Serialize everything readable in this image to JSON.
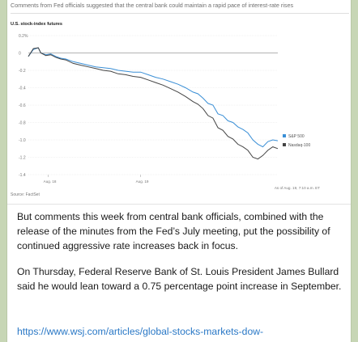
{
  "message": {
    "chart_heading": "Comments from Fed officials suggested that the central bank could maintain a rapid pace of interest-rate rises",
    "source": "Source: FactSet",
    "timestamp": "As of Aug. 19, 7:10 a.m. ET",
    "paragraph1": "But comments this week from central bank officials, combined with the release of the minutes from the Fed’s July meeting, put the possibility of continued aggressive rate increases back in focus.",
    "paragraph2": "On Thursday, Federal Reserve Bank of St. Louis President James Bullard said he would lean toward a 0.75 percentage point increase in September.",
    "link": "https://www.wsj.com/articles/global-stocks-markets-dow-"
  },
  "colors": {
    "sp500": "#3a8fd6",
    "nasdaq": "#444444",
    "link": "#2a78c6",
    "background": "#c7d6b5"
  },
  "chart_data": {
    "type": "line",
    "title": "U.S. stock-index futures",
    "ylim": [
      -1.4,
      0.2
    ],
    "yticks": [
      "0.2%",
      "0",
      "-0.2",
      "-0.4",
      "-0.6",
      "-0.8",
      "-1.0",
      "-1.2",
      "-1.4"
    ],
    "ytick_values": [
      0.2,
      0,
      -0.2,
      -0.4,
      -0.6,
      -0.8,
      -1.0,
      -1.2,
      -1.4
    ],
    "xticks": [
      "Aug. 18",
      "Aug. 19"
    ],
    "xtick_positions": [
      0.08,
      0.45
    ],
    "legend_position": "right",
    "series": [
      {
        "name": "S&P 500",
        "color": "#3a8fd6",
        "x": [
          0,
          0.02,
          0.04,
          0.05,
          0.07,
          0.09,
          0.11,
          0.13,
          0.15,
          0.18,
          0.21,
          0.24,
          0.27,
          0.3,
          0.33,
          0.36,
          0.39,
          0.42,
          0.45,
          0.48,
          0.51,
          0.54,
          0.57,
          0.6,
          0.63,
          0.66,
          0.68,
          0.7,
          0.72,
          0.74,
          0.76,
          0.78,
          0.8,
          0.82,
          0.84,
          0.86,
          0.88,
          0.9,
          0.92,
          0.94,
          0.96,
          0.98,
          1.0
        ],
        "y": [
          -0.04,
          0.04,
          0.06,
          0.0,
          -0.02,
          -0.01,
          -0.04,
          -0.06,
          -0.07,
          -0.1,
          -0.12,
          -0.14,
          -0.16,
          -0.17,
          -0.18,
          -0.2,
          -0.21,
          -0.22,
          -0.22,
          -0.25,
          -0.28,
          -0.3,
          -0.33,
          -0.36,
          -0.4,
          -0.45,
          -0.47,
          -0.52,
          -0.58,
          -0.6,
          -0.7,
          -0.72,
          -0.78,
          -0.8,
          -0.85,
          -0.88,
          -0.92,
          -1.0,
          -1.05,
          -1.08,
          -1.02,
          -1.0,
          -1.01
        ]
      },
      {
        "name": "Nasdaq-100",
        "color": "#444444",
        "x": [
          0,
          0.02,
          0.04,
          0.05,
          0.07,
          0.09,
          0.11,
          0.13,
          0.15,
          0.18,
          0.21,
          0.24,
          0.27,
          0.3,
          0.33,
          0.36,
          0.39,
          0.42,
          0.45,
          0.48,
          0.51,
          0.54,
          0.57,
          0.6,
          0.63,
          0.66,
          0.68,
          0.7,
          0.72,
          0.74,
          0.76,
          0.78,
          0.8,
          0.82,
          0.84,
          0.86,
          0.88,
          0.9,
          0.92,
          0.94,
          0.96,
          0.98,
          1.0
        ],
        "y": [
          -0.04,
          0.05,
          0.06,
          0.0,
          -0.03,
          -0.02,
          -0.05,
          -0.07,
          -0.08,
          -0.12,
          -0.14,
          -0.16,
          -0.18,
          -0.2,
          -0.21,
          -0.24,
          -0.25,
          -0.27,
          -0.28,
          -0.31,
          -0.34,
          -0.37,
          -0.41,
          -0.45,
          -0.5,
          -0.56,
          -0.59,
          -0.64,
          -0.72,
          -0.75,
          -0.86,
          -0.89,
          -0.96,
          -0.99,
          -1.05,
          -1.08,
          -1.12,
          -1.2,
          -1.22,
          -1.18,
          -1.12,
          -1.08,
          -1.1
        ]
      }
    ]
  }
}
